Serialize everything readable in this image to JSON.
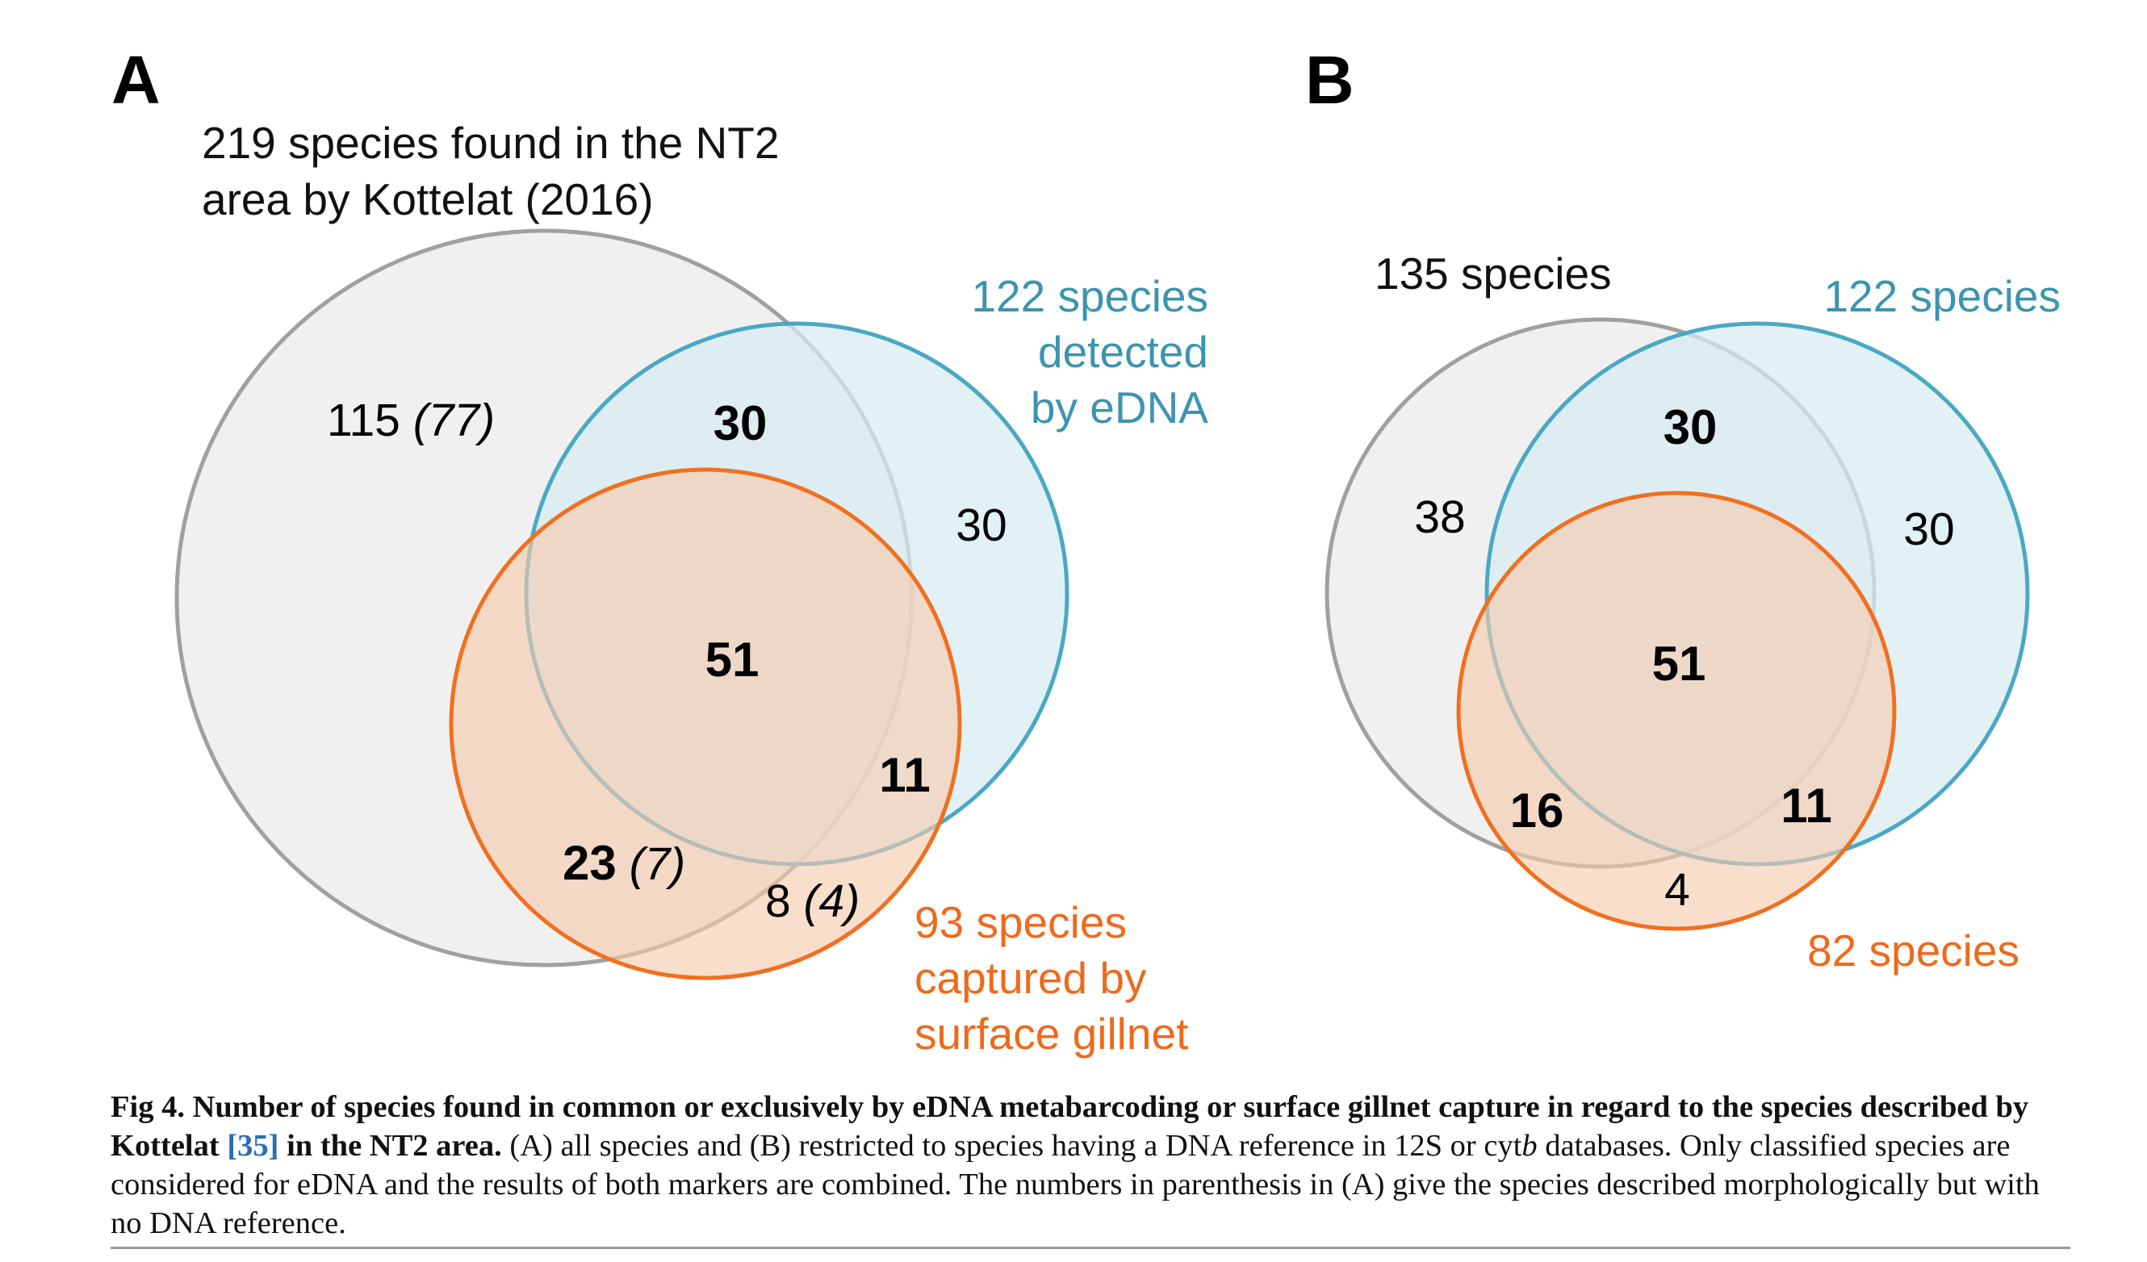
{
  "colors": {
    "kottelat": "#a0a0a0",
    "kottelat_fill": "#f0f0f0",
    "edna": "#4aa8c4",
    "edna_fill": "#d6ecf2",
    "gillnet": "#f07020",
    "gillnet_fill": "#f7c9ad",
    "edna_text": "#3c94b0",
    "gillnet_text": "#ee6a1c"
  },
  "panelA": {
    "letter": "A",
    "kottelat_label": [
      "219 species found in the NT2",
      "area by Kottelat (2016)"
    ],
    "edna_label": [
      "122 species",
      "detected",
      "by eDNA"
    ],
    "gillnet_label": [
      "93 species",
      "captured by",
      "surface gillnet"
    ],
    "counts": {
      "kottelat_only": "115",
      "kottelat_only_nodna": "(77)",
      "kottelat_edna": "30",
      "edna_only": "30",
      "all_three": "51",
      "edna_gillnet": "11",
      "kottelat_gillnet": "23",
      "kottelat_gillnet_nodna": "(7)",
      "gillnet_only": "8",
      "gillnet_only_nodna": "(4)"
    }
  },
  "panelB": {
    "letter": "B",
    "kottelat_label": "135 species",
    "edna_label": "122 species",
    "gillnet_label": "82 species",
    "counts": {
      "kottelat_only": "38",
      "kottelat_edna": "30",
      "edna_only": "30",
      "all_three": "51",
      "kottelat_gillnet": "16",
      "edna_gillnet": "11",
      "gillnet_only": "4"
    }
  },
  "caption": {
    "title_part1": "Fig 4. Number of species found in common or exclusively by eDNA metabarcoding or surface gillnet capture in regard to the species described by Kottelat ",
    "ref": "[35]",
    "title_part2": " in the NT2 area.",
    "body_part1": " (A) all species and (B) restricted to species having a DNA reference in 12S or cyt",
    "body_italic": "b",
    "body_part2": " databases. Only classified species are considered for eDNA and the results of both markers are combined. The numbers in parenthesis in (A) give the species described morphologically but with no DNA reference."
  }
}
